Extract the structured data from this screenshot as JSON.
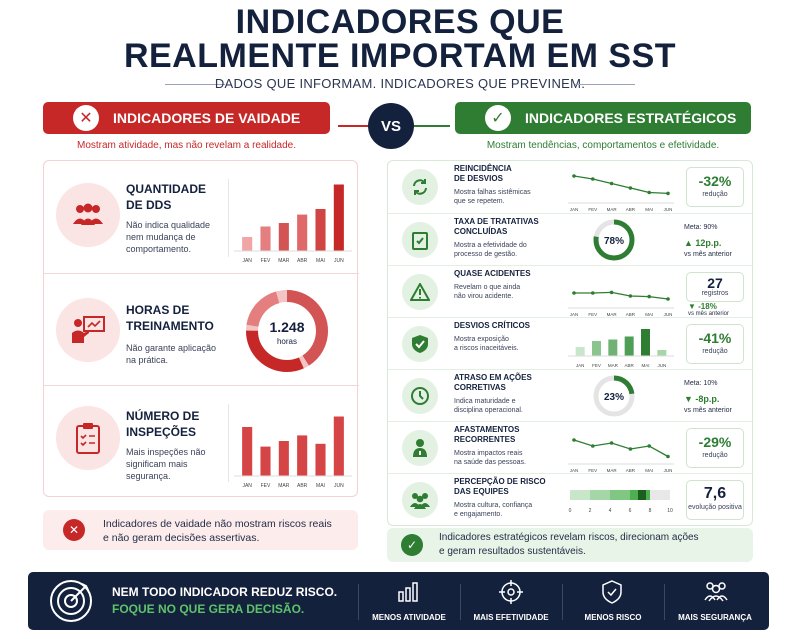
{
  "header": {
    "title_line1": "INDICADORES QUE",
    "title_line2": "REALMENTE IMPORTAM EM SST",
    "subtitle": "DADOS QUE INFORMAM. INDICADORES QUE PREVINEM."
  },
  "vanity": {
    "label": "INDICADORES DE VAIDADE",
    "caption": "Mostram atividade, mas não revelam a realidade.",
    "color": "#c62828",
    "items": [
      {
        "title_l1": "QUANTIDADE",
        "title_l2": "DE DDS",
        "desc_l1": "Não indica qualidade",
        "desc_l2": "nem mudança de",
        "desc_l3": "comportamento.",
        "icon": "group-icon"
      },
      {
        "title_l1": "HORAS DE",
        "title_l2": "TREINAMENTO",
        "desc_l1": "Não garante aplicação",
        "desc_l2": "na prática.",
        "value": "1.248",
        "unit": "horas",
        "icon": "training-icon"
      },
      {
        "title_l1": "NÚMERO DE",
        "title_l2": "INSPEÇÕES",
        "desc_l1": "Mais inspeções não",
        "desc_l2": "significam mais",
        "desc_l3": "segurança.",
        "icon": "clipboard-icon"
      }
    ],
    "footer_l1": "Indicadores de vaidade não mostram riscos reais",
    "footer_l2": "e não geram decisões assertivas."
  },
  "vs": "VS",
  "strategic": {
    "label": "INDICADORES ESTRATÉGICOS",
    "caption": "Mostram tendências, comportamentos e efetividade.",
    "color": "#2e7d32",
    "items": [
      {
        "title_l1": "REINCIDÊNCIA",
        "title_l2": "DE DESVIOS",
        "desc_l1": "Mostra falhas sistêmicas",
        "desc_l2": "que se repetem.",
        "value": "-32%",
        "value_note": "redução",
        "icon": "recycle-icon"
      },
      {
        "title_l1": "TAXA DE TRATATIVAS",
        "title_l2": "CONCLUÍDAS",
        "desc_l1": "Mostra a efetividade do",
        "desc_l2": "processo de gestão.",
        "gauge": "78%",
        "meta": "Meta: 90%",
        "delta": "12p.p.",
        "delta_note": "vs mês anterior",
        "icon": "checklist-icon"
      },
      {
        "title_l1": "QUASE ACIDENTES",
        "desc_l1": "Revelam o que ainda",
        "desc_l2": "não virou acidente.",
        "value": "27",
        "value_note": "registros",
        "delta": "-18%",
        "delta_note": "vs mês anterior",
        "icon": "warning-icon"
      },
      {
        "title_l1": "DESVIOS CRÍTICOS",
        "desc_l1": "Mostra exposição",
        "desc_l2": "a riscos inaceitáveis.",
        "value": "-41%",
        "value_note": "redução",
        "icon": "shield-icon"
      },
      {
        "title_l1": "ATRASO EM AÇÕES",
        "title_l2": "CORRETIVAS",
        "desc_l1": "Indica maturidade e",
        "desc_l2": "disciplina operacional.",
        "gauge": "23%",
        "meta": "Meta: 10%",
        "delta": "-8p.p.",
        "delta_note": "vs mês anterior",
        "icon": "clock-icon"
      },
      {
        "title_l1": "AFASTAMENTOS",
        "title_l2": "RECORRENTES",
        "desc_l1": "Mostra impactos reais",
        "desc_l2": "na saúde das pessoas.",
        "value": "-29%",
        "value_note": "redução",
        "icon": "person-icon"
      },
      {
        "title_l1": "PERCEPÇÃO DE RISCO",
        "title_l2": "DAS EQUIPES",
        "desc_l1": "Mostra cultura, confiança",
        "desc_l2": "e engajamento.",
        "value": "7,6",
        "value_note": "evolução positiva",
        "icon": "team-icon"
      }
    ],
    "footer_l1": "Indicadores estratégicos revelam riscos, direcionam ações",
    "footer_l2": "e geram resultados sustentáveis."
  },
  "months": [
    "JAN",
    "FEV",
    "MAR",
    "ABR",
    "MAI",
    "JUN"
  ],
  "scale_ticks": [
    "0",
    "2",
    "4",
    "6",
    "8",
    "10"
  ],
  "chart_data": [
    {
      "type": "bar",
      "name": "Quantidade de DDS",
      "categories": [
        "JAN",
        "FEV",
        "MAR",
        "ABR",
        "MAI",
        "JUN"
      ],
      "values": [
        2,
        3.5,
        4,
        5.2,
        6,
        9.5
      ]
    },
    {
      "type": "pie",
      "name": "Horas de treinamento",
      "value": 1248
    },
    {
      "type": "bar",
      "name": "Número de inspeções",
      "categories": [
        "JAN",
        "FEV",
        "MAR",
        "ABR",
        "MAI",
        "JUN"
      ],
      "values": [
        7,
        4.2,
        5,
        5.8,
        4.6,
        8.5
      ]
    },
    {
      "type": "line",
      "name": "Reincidência de desvios",
      "categories": [
        "JAN",
        "FEV",
        "MAR",
        "ABR",
        "MAI",
        "JUN"
      ],
      "values": [
        9,
        8,
        6.5,
        5,
        3.5,
        3.2
      ]
    },
    {
      "type": "line",
      "name": "Quase acidentes",
      "categories": [
        "JAN",
        "FEV",
        "MAR",
        "ABR",
        "MAI",
        "JUN"
      ],
      "values": [
        5,
        5,
        5.2,
        4,
        3.8,
        3
      ]
    },
    {
      "type": "bar",
      "name": "Desvios críticos",
      "categories": [
        "JAN",
        "FEV",
        "MAR",
        "ABR",
        "MAI",
        "JUN"
      ],
      "values": [
        3,
        5,
        5.5,
        6.5,
        9,
        2
      ]
    },
    {
      "type": "line",
      "name": "Afastamentos recorrentes",
      "categories": [
        "JAN",
        "FEV",
        "MAR",
        "ABR",
        "MAI",
        "JUN"
      ],
      "values": [
        8,
        6,
        7,
        5,
        6,
        2.5
      ]
    },
    {
      "type": "bar",
      "name": "Percepção de risco",
      "values": [
        7.6
      ],
      "xlim": [
        0,
        10
      ]
    }
  ],
  "banner": {
    "line1": "NEM TODO INDICADOR REDUZ RISCO.",
    "line2": "FOQUE NO QUE GERA DECISÃO.",
    "items": [
      "MENOS ATIVIDADE",
      "MAIS EFETIVIDADE",
      "MENOS RISCO",
      "MAIS SEGURANÇA"
    ]
  }
}
